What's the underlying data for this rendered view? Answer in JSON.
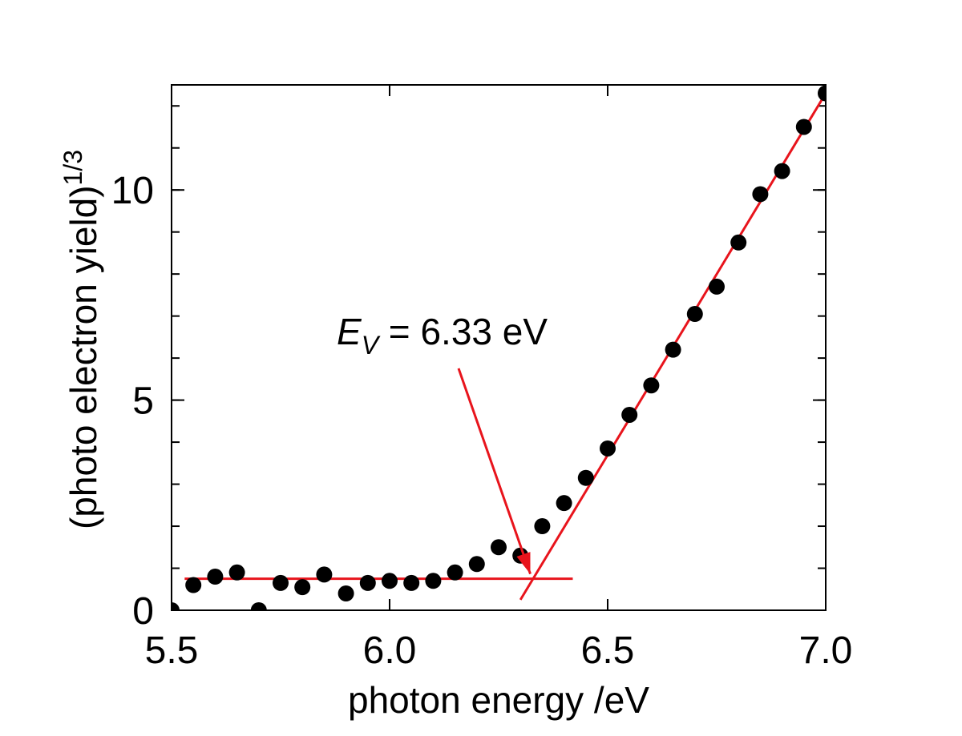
{
  "chart_data": {
    "type": "scatter",
    "title": "",
    "xlabel": "photon energy  /eV",
    "ylabel": "(photo electron yield)",
    "ylabel_superscript": "1/3",
    "xlim": [
      5.5,
      7.0
    ],
    "ylim": [
      0,
      12.5
    ],
    "x_ticks": [
      "5.5",
      "6.0",
      "6.5",
      "7.0"
    ],
    "y_ticks": [
      "0",
      "5",
      "10"
    ],
    "x_tick_values": [
      5.5,
      6.0,
      6.5,
      7.0
    ],
    "y_tick_values": [
      0,
      5,
      10
    ],
    "y_minor_step": 1,
    "grid": false,
    "series": [
      {
        "color": "#000000",
        "x": [
          5.5,
          5.55,
          5.6,
          5.65,
          5.7,
          5.75,
          5.8,
          5.85,
          5.9,
          5.95,
          6.0,
          6.05,
          6.1,
          6.15,
          6.2,
          6.25,
          6.3,
          6.35,
          6.4,
          6.45,
          6.5,
          6.55,
          6.6,
          6.65,
          6.7,
          6.75,
          6.8,
          6.85,
          6.9,
          6.95,
          7.0
        ],
        "y": [
          0.0,
          0.6,
          0.8,
          0.9,
          0.0,
          0.65,
          0.55,
          0.85,
          0.4,
          0.65,
          0.7,
          0.65,
          0.7,
          0.9,
          1.1,
          1.5,
          1.3,
          2.0,
          2.55,
          3.15,
          3.85,
          4.65,
          5.35,
          6.2,
          7.05,
          7.7,
          8.75,
          9.9,
          10.45,
          11.5,
          12.3
        ]
      }
    ],
    "fit_lines": [
      {
        "name": "baseline",
        "color": "#e8141c",
        "x": [
          5.53,
          6.42
        ],
        "y": [
          0.75,
          0.75
        ]
      },
      {
        "name": "linear fit",
        "color": "#e8141c",
        "x": [
          6.3,
          7.0
        ],
        "y": [
          0.25,
          12.3
        ]
      }
    ],
    "annotation": {
      "symbol": "E",
      "subscript": "V",
      "text": " = 6.33 eV",
      "arrow_color": "#e8141c",
      "arrow_to": [
        6.33,
        0.75
      ]
    }
  }
}
